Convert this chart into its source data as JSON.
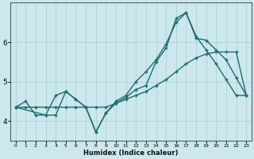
{
  "xlabel": "Humidex (Indice chaleur)",
  "bg_color": "#cce8ee",
  "line_color": "#1e6b6b",
  "grid_color": "#aacccc",
  "line1_x": [
    0,
    1,
    2,
    3,
    4,
    5,
    6,
    7,
    8,
    9,
    10,
    11,
    12,
    13,
    14,
    15,
    16,
    17,
    18,
    19,
    20,
    21,
    22,
    23
  ],
  "line1_y": [
    4.35,
    4.5,
    4.15,
    4.15,
    4.65,
    4.75,
    4.55,
    4.35,
    3.72,
    4.2,
    4.45,
    4.6,
    4.8,
    4.9,
    5.5,
    5.85,
    6.6,
    6.75,
    6.15,
    5.8,
    5.45,
    5.05,
    4.65,
    4.65
  ],
  "line2_x": [
    0,
    1,
    2,
    3,
    4,
    5,
    6,
    7,
    8,
    9,
    10,
    11,
    12,
    13,
    14,
    15,
    16,
    17,
    18,
    19,
    20,
    21,
    22,
    23
  ],
  "line2_y": [
    4.35,
    4.35,
    4.35,
    4.35,
    4.35,
    4.35,
    4.35,
    4.35,
    4.35,
    4.35,
    4.45,
    4.55,
    4.65,
    4.75,
    4.9,
    5.05,
    5.25,
    5.45,
    5.6,
    5.7,
    5.75,
    5.75,
    5.75,
    4.65
  ],
  "line3_x": [
    0,
    3,
    4,
    5,
    6,
    7,
    8,
    9,
    10,
    11,
    12,
    13,
    14,
    15,
    16,
    17,
    18,
    19,
    20,
    21,
    22,
    23
  ],
  "line3_y": [
    4.35,
    4.15,
    4.15,
    4.75,
    4.55,
    4.35,
    3.72,
    4.2,
    4.5,
    4.65,
    5.0,
    5.25,
    5.55,
    5.95,
    6.5,
    6.75,
    6.1,
    6.05,
    5.8,
    5.55,
    5.1,
    4.65
  ],
  "ylim": [
    3.5,
    7.0
  ],
  "xlim": [
    -0.5,
    23.5
  ],
  "yticks": [
    4,
    5,
    6
  ],
  "xticks": [
    0,
    1,
    2,
    3,
    4,
    5,
    6,
    7,
    8,
    9,
    10,
    11,
    12,
    13,
    14,
    15,
    16,
    17,
    18,
    19,
    20,
    21,
    22,
    23
  ]
}
